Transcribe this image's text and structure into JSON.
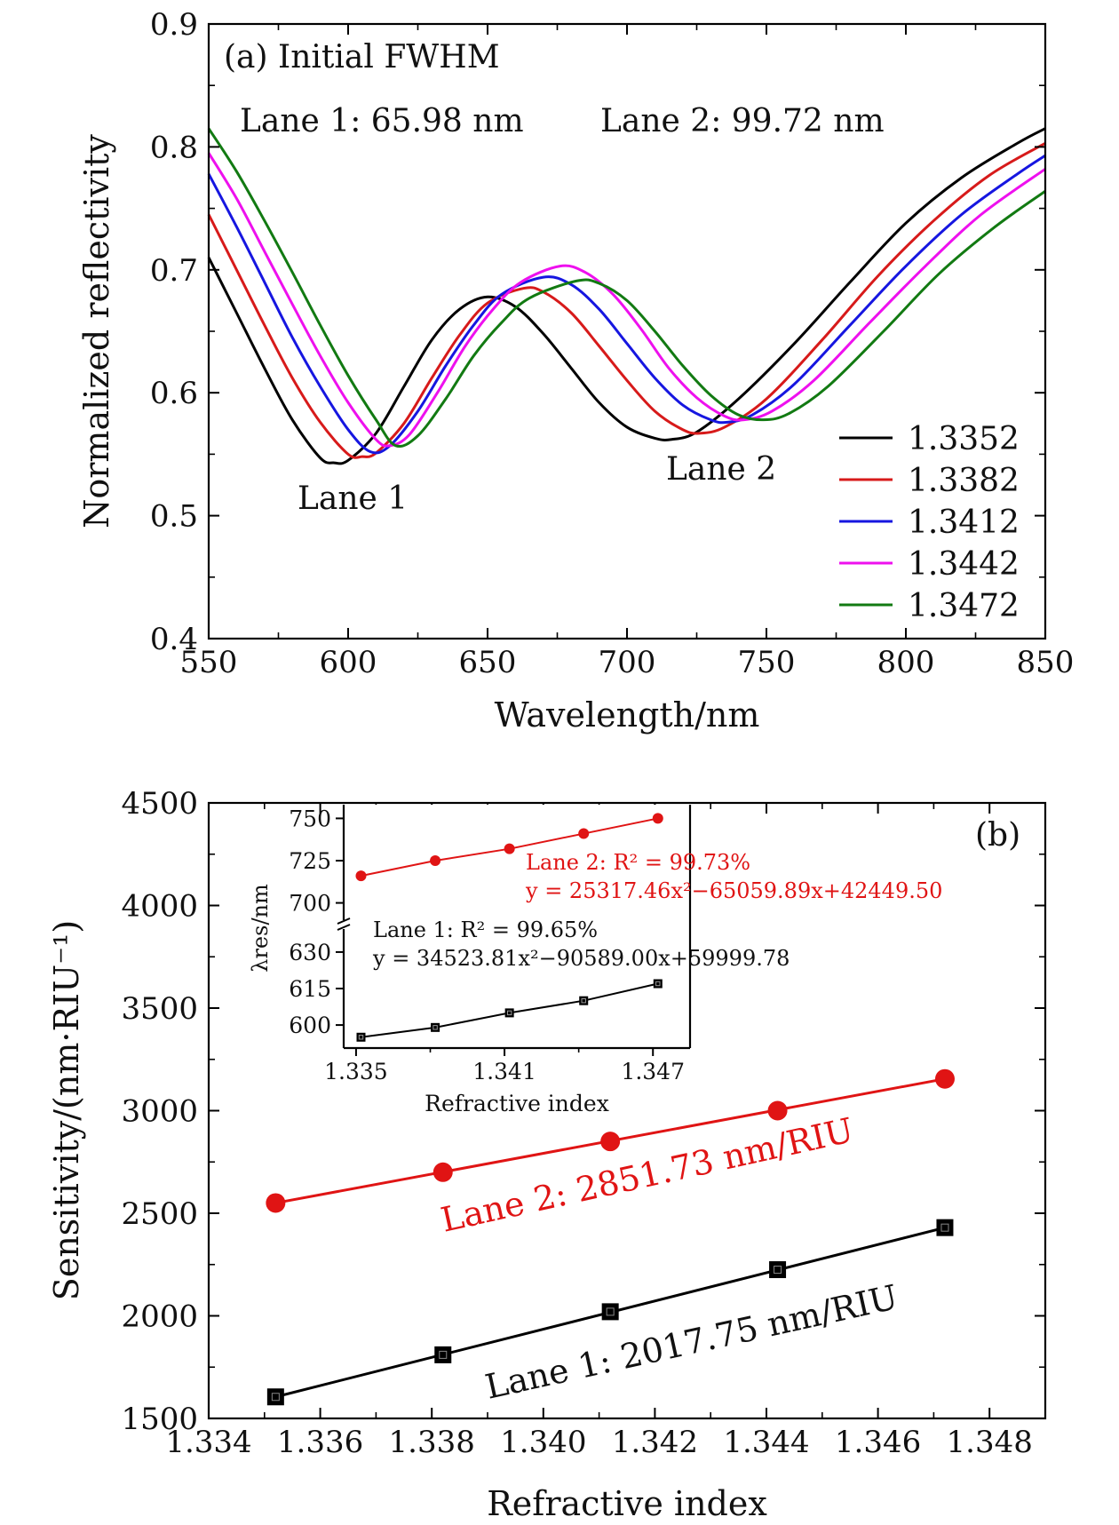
{
  "chart_data": [
    {
      "type": "line",
      "panel_label": "(a) Initial FWHM",
      "xlabel": "Wavelength/nm",
      "ylabel": "Normalized reflectivity",
      "xlim": [
        550,
        850
      ],
      "ylim": [
        0.4,
        0.9
      ],
      "xticks": [
        "550",
        "600",
        "650",
        "700",
        "750",
        "800",
        "850"
      ],
      "yticks": [
        "0.4",
        "0.5",
        "0.6",
        "0.7",
        "0.8",
        "0.9"
      ],
      "legend_position": "lower-right",
      "annotations": {
        "fwhm_lane1": "Lane 1: 65.98 nm",
        "fwhm_lane2": "Lane 2: 99.72 nm",
        "dip_lane1": "Lane 1",
        "dip_lane2": "Lane 2"
      },
      "series": [
        {
          "name": "1.3352",
          "color": "#000000",
          "points": [
            [
              550,
              0.71
            ],
            [
              560,
              0.665
            ],
            [
              570,
              0.62
            ],
            [
              580,
              0.578
            ],
            [
              590,
              0.547
            ],
            [
              595,
              0.543
            ],
            [
              600,
              0.545
            ],
            [
              610,
              0.567
            ],
            [
              620,
              0.605
            ],
            [
              630,
              0.643
            ],
            [
              640,
              0.668
            ],
            [
              650,
              0.678
            ],
            [
              660,
              0.67
            ],
            [
              670,
              0.648
            ],
            [
              680,
              0.62
            ],
            [
              690,
              0.592
            ],
            [
              700,
              0.572
            ],
            [
              710,
              0.563
            ],
            [
              716,
              0.562
            ],
            [
              725,
              0.568
            ],
            [
              740,
              0.595
            ],
            [
              760,
              0.64
            ],
            [
              780,
              0.69
            ],
            [
              800,
              0.738
            ],
            [
              820,
              0.775
            ],
            [
              840,
              0.803
            ],
            [
              850,
              0.815
            ]
          ]
        },
        {
          "name": "1.3382",
          "color": "#d71a1a",
          "points": [
            [
              550,
              0.745
            ],
            [
              560,
              0.7
            ],
            [
              570,
              0.655
            ],
            [
              580,
              0.612
            ],
            [
              590,
              0.576
            ],
            [
              600,
              0.55
            ],
            [
              605,
              0.548
            ],
            [
              610,
              0.551
            ],
            [
              620,
              0.575
            ],
            [
              630,
              0.612
            ],
            [
              640,
              0.647
            ],
            [
              650,
              0.673
            ],
            [
              663,
              0.685
            ],
            [
              670,
              0.682
            ],
            [
              680,
              0.665
            ],
            [
              690,
              0.638
            ],
            [
              700,
              0.61
            ],
            [
              710,
              0.585
            ],
            [
              720,
              0.57
            ],
            [
              726,
              0.567
            ],
            [
              735,
              0.572
            ],
            [
              750,
              0.595
            ],
            [
              770,
              0.643
            ],
            [
              790,
              0.695
            ],
            [
              810,
              0.74
            ],
            [
              830,
              0.777
            ],
            [
              850,
              0.803
            ]
          ]
        },
        {
          "name": "1.3412",
          "color": "#1616e0",
          "points": [
            [
              550,
              0.778
            ],
            [
              560,
              0.735
            ],
            [
              570,
              0.69
            ],
            [
              580,
              0.645
            ],
            [
              590,
              0.605
            ],
            [
              600,
              0.57
            ],
            [
              608,
              0.552
            ],
            [
              615,
              0.557
            ],
            [
              625,
              0.585
            ],
            [
              635,
              0.622
            ],
            [
              645,
              0.655
            ],
            [
              655,
              0.68
            ],
            [
              670,
              0.694
            ],
            [
              680,
              0.688
            ],
            [
              690,
              0.668
            ],
            [
              700,
              0.64
            ],
            [
              710,
              0.612
            ],
            [
              720,
              0.59
            ],
            [
              730,
              0.578
            ],
            [
              736,
              0.576
            ],
            [
              745,
              0.582
            ],
            [
              760,
              0.607
            ],
            [
              780,
              0.655
            ],
            [
              800,
              0.703
            ],
            [
              820,
              0.745
            ],
            [
              840,
              0.778
            ],
            [
              850,
              0.793
            ]
          ]
        },
        {
          "name": "1.3442",
          "color": "#ee10ee",
          "points": [
            [
              550,
              0.795
            ],
            [
              560,
              0.758
            ],
            [
              570,
              0.715
            ],
            [
              580,
              0.672
            ],
            [
              590,
              0.63
            ],
            [
              600,
              0.592
            ],
            [
              610,
              0.562
            ],
            [
              615,
              0.557
            ],
            [
              622,
              0.566
            ],
            [
              632,
              0.6
            ],
            [
              642,
              0.638
            ],
            [
              652,
              0.668
            ],
            [
              662,
              0.69
            ],
            [
              676,
              0.703
            ],
            [
              685,
              0.698
            ],
            [
              695,
              0.68
            ],
            [
              705,
              0.652
            ],
            [
              715,
              0.62
            ],
            [
              725,
              0.596
            ],
            [
              735,
              0.581
            ],
            [
              742,
              0.578
            ],
            [
              752,
              0.585
            ],
            [
              767,
              0.61
            ],
            [
              787,
              0.657
            ],
            [
              807,
              0.703
            ],
            [
              827,
              0.745
            ],
            [
              850,
              0.782
            ]
          ]
        },
        {
          "name": "1.3472",
          "color": "#127a12",
          "points": [
            [
              550,
              0.815
            ],
            [
              560,
              0.78
            ],
            [
              570,
              0.74
            ],
            [
              580,
              0.698
            ],
            [
              590,
              0.655
            ],
            [
              600,
              0.614
            ],
            [
              610,
              0.578
            ],
            [
              617,
              0.557
            ],
            [
              625,
              0.565
            ],
            [
              635,
              0.595
            ],
            [
              645,
              0.63
            ],
            [
              655,
              0.657
            ],
            [
              665,
              0.677
            ],
            [
              682,
              0.691
            ],
            [
              690,
              0.689
            ],
            [
              700,
              0.675
            ],
            [
              710,
              0.65
            ],
            [
              720,
              0.622
            ],
            [
              730,
              0.598
            ],
            [
              740,
              0.582
            ],
            [
              749,
              0.578
            ],
            [
              758,
              0.583
            ],
            [
              772,
              0.605
            ],
            [
              792,
              0.65
            ],
            [
              812,
              0.697
            ],
            [
              832,
              0.735
            ],
            [
              850,
              0.764
            ]
          ]
        }
      ]
    },
    {
      "type": "scatter",
      "panel_label": "(b)",
      "xlabel": "Refractive index",
      "ylabel": "Sensitivity/(nm·RIU⁻¹)",
      "xlim": [
        1.334,
        1.349
      ],
      "ylim": [
        1500,
        4500
      ],
      "xticks": [
        "1.334",
        "1.336",
        "1.338",
        "1.340",
        "1.342",
        "1.344",
        "1.346",
        "1.348"
      ],
      "yticks": [
        "1500",
        "2000",
        "2500",
        "3000",
        "3500",
        "4000",
        "4500"
      ],
      "series": [
        {
          "name": "Lane 1",
          "label": "Lane 1: 2017.75 nm/RIU",
          "color": "#000000",
          "marker": "square",
          "x": [
            1.3352,
            1.3382,
            1.3412,
            1.3442,
            1.3472
          ],
          "y": [
            1605,
            1810,
            2020,
            2225,
            2430
          ]
        },
        {
          "name": "Lane 2",
          "label": "Lane 2: 2851.73 nm/RIU",
          "color": "#e01414",
          "marker": "circle",
          "x": [
            1.3352,
            1.3382,
            1.3412,
            1.3442,
            1.3472
          ],
          "y": [
            2550,
            2700,
            2850,
            3000,
            3155
          ]
        }
      ],
      "inset": {
        "xlabel": "Refractive index",
        "ylabel": "λres/nm",
        "xlim": [
          1.3345,
          1.3485
        ],
        "xticks": [
          "1.335",
          "1.341",
          "1.347"
        ],
        "yticks_upper": [
          "700",
          "725",
          "750"
        ],
        "yticks_lower": [
          "600",
          "615",
          "630"
        ],
        "ylim_upper": [
          694,
          756
        ],
        "ylim_lower": [
          592,
          638
        ],
        "lane2_fit_r2": "Lane 2: R² = 99.73%",
        "lane2_fit_eq": "y = 25317.46x²−65059.89x+42449.50",
        "lane1_fit_r2": "Lane 1: R² = 99.65%",
        "lane1_fit_eq": "y = 34523.81x²−90589.00x+59999.78",
        "series": [
          {
            "name": "Lane 2",
            "color": "#e01414",
            "marker": "circle",
            "x": [
              1.3352,
              1.3382,
              1.3412,
              1.3442,
              1.3472
            ],
            "y": [
              716,
              725,
              732,
              741,
              750
            ]
          },
          {
            "name": "Lane 1",
            "color": "#000000",
            "marker": "square",
            "x": [
              1.3352,
              1.3382,
              1.3412,
              1.3442,
              1.3472
            ],
            "y": [
              595,
              599,
              605,
              610,
              617
            ]
          }
        ]
      }
    }
  ]
}
